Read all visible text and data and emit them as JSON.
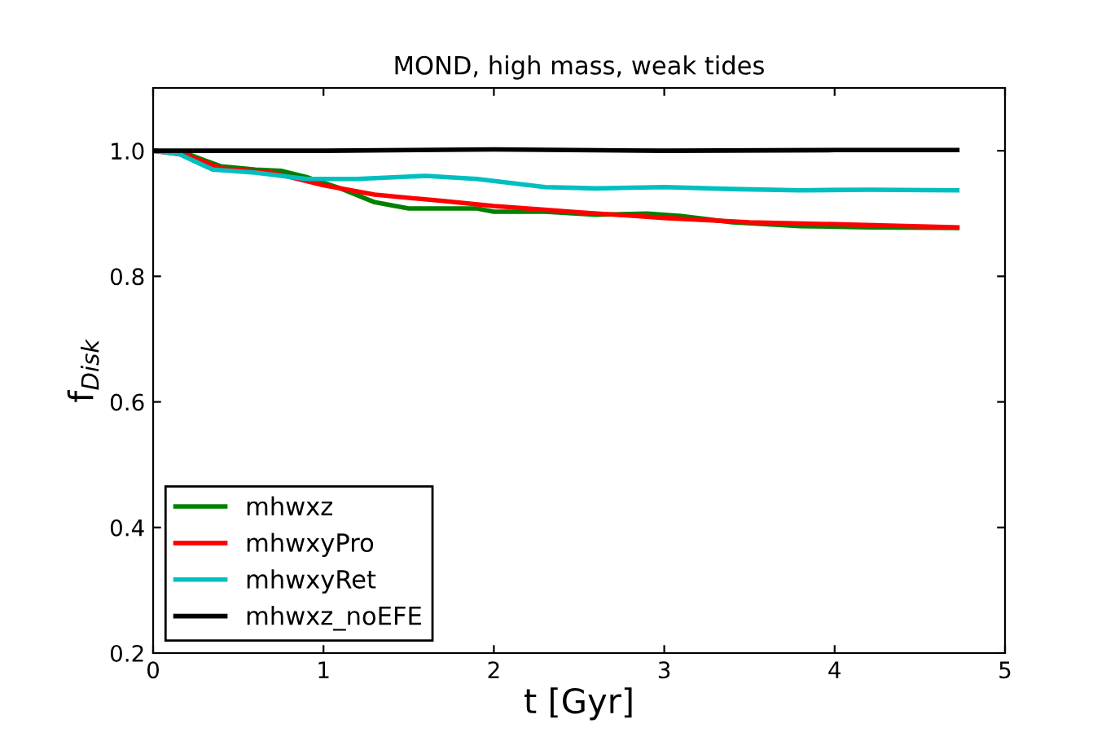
{
  "chart_data": {
    "type": "line",
    "title": "MOND, high mass, weak tides",
    "xlabel": "t [Gyr]",
    "ylabel": "f$_{Disk}$",
    "xlim": [
      0,
      5
    ],
    "xticks": [
      0,
      1,
      2,
      3,
      4,
      5
    ],
    "ylim": [
      0.2,
      1.1
    ],
    "yticks": [
      0.2,
      0.4,
      0.6,
      0.8,
      {
        "value": 1.0,
        "label": "1.0"
      }
    ],
    "grid": false,
    "legend": "bottom left",
    "series": [
      {
        "name": "mhwxz",
        "color": "#008000",
        "x": [
          0,
          0.2,
          0.4,
          0.6,
          0.75,
          0.9,
          1.1,
          1.3,
          1.5,
          1.7,
          1.9,
          2.0,
          2.3,
          2.6,
          2.9,
          3.1,
          3.4,
          3.8,
          4.2,
          4.72
        ],
        "values": [
          1.0,
          0.995,
          0.975,
          0.97,
          0.968,
          0.958,
          0.94,
          0.918,
          0.908,
          0.908,
          0.908,
          0.903,
          0.903,
          0.898,
          0.9,
          0.896,
          0.886,
          0.88,
          0.878,
          0.877
        ]
      },
      {
        "name": "mhwxyPro",
        "color": "#ff0000",
        "x": [
          0,
          0.2,
          0.4,
          0.7,
          1.0,
          1.3,
          1.7,
          2.0,
          2.5,
          3.0,
          3.5,
          4.0,
          4.72
        ],
        "values": [
          1.0,
          0.993,
          0.972,
          0.965,
          0.945,
          0.93,
          0.92,
          0.912,
          0.902,
          0.893,
          0.886,
          0.883,
          0.878
        ]
      },
      {
        "name": "mhwxyRet",
        "color": "#00bfbf",
        "x": [
          0,
          0.15,
          0.35,
          0.6,
          0.9,
          1.2,
          1.6,
          1.9,
          2.3,
          2.6,
          3.0,
          3.4,
          3.8,
          4.2,
          4.72
        ],
        "values": [
          1.0,
          0.995,
          0.97,
          0.965,
          0.955,
          0.955,
          0.96,
          0.955,
          0.942,
          0.94,
          0.942,
          0.939,
          0.937,
          0.938,
          0.937
        ]
      },
      {
        "name": "mhwxz_noEFE",
        "color": "#000000",
        "x": [
          0,
          1,
          2,
          3,
          4,
          4.72
        ],
        "values": [
          1.0,
          1.0,
          1.002,
          1.0,
          1.001,
          1.001
        ]
      }
    ]
  }
}
